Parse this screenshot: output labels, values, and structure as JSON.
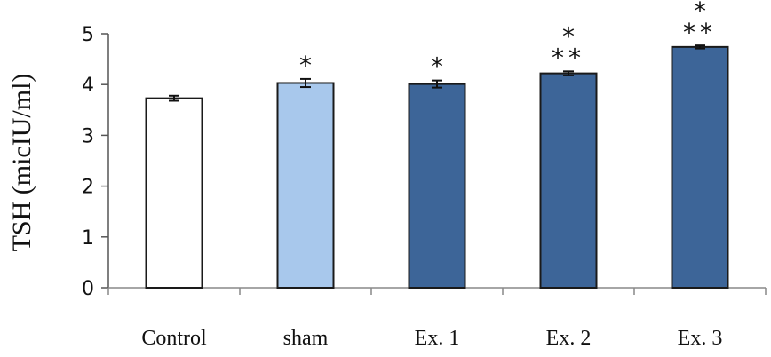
{
  "chart_data": {
    "type": "bar",
    "ylabel": "TSH (micIU/ml)",
    "xlabel": "",
    "ylim": [
      0,
      5
    ],
    "yticks": [
      0,
      1,
      2,
      3,
      4,
      5
    ],
    "categories": [
      "Control",
      "sham",
      "Ex. 1",
      "Ex. 2",
      "Ex. 3"
    ],
    "values": [
      3.73,
      4.03,
      4.01,
      4.22,
      4.74
    ],
    "errors": [
      0.05,
      0.08,
      0.07,
      0.04,
      0.03
    ],
    "significance": [
      [],
      [
        "*"
      ],
      [
        "*"
      ],
      [
        "*",
        "**"
      ],
      [
        "*",
        "**"
      ]
    ],
    "bar_colors": [
      "#ffffff",
      "#a8c8ec",
      "#3d6598",
      "#3d6598",
      "#3d6598"
    ],
    "bar_edge_color": "#1a1a1a",
    "grid": false,
    "legend": "none"
  }
}
